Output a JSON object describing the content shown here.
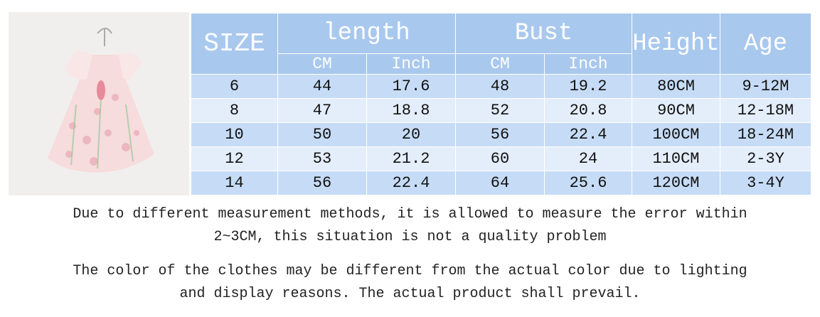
{
  "table": {
    "headers": [
      "SIZE",
      "length",
      "Bust",
      "Height",
      "Age"
    ],
    "subheaders": [
      "CM",
      "Inch",
      "CM",
      "Inch"
    ],
    "rows": [
      [
        "6",
        "44",
        "17.6",
        "48",
        "19.2",
        "80CM",
        "9-12M"
      ],
      [
        "8",
        "47",
        "18.8",
        "52",
        "20.8",
        "90CM",
        "12-18M"
      ],
      [
        "10",
        "50",
        "20",
        "56",
        "22.4",
        "100CM",
        "18-24M"
      ],
      [
        "12",
        "53",
        "21.2",
        "60",
        "24",
        "110CM",
        "2-3Y"
      ],
      [
        "14",
        "56",
        "22.4",
        "64",
        "25.6",
        "120CM",
        "3-4Y"
      ]
    ]
  },
  "notes": [
    [
      "Due to different measurement methods, it is allowed to measure the error within",
      "2~3CM, this situation is not a quality problem"
    ],
    [
      "The color of the clothes may be different from the actual color due to lighting",
      "and display reasons. The actual product shall prevail."
    ]
  ]
}
